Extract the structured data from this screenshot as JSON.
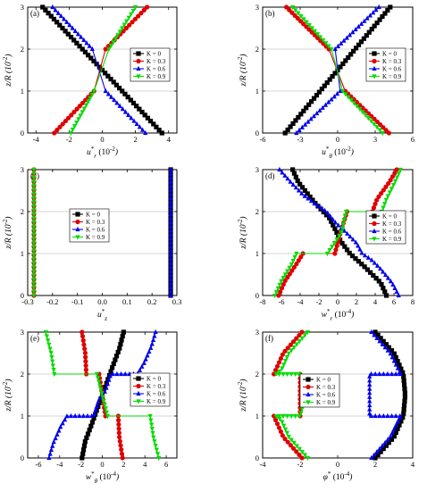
{
  "figure": {
    "legend_entries": [
      "K = 0",
      "K = 0.3",
      "K = 0.6",
      "K = 0.9"
    ],
    "colors": [
      "#000000",
      "#e00000",
      "#0000ee",
      "#00dd00"
    ],
    "markers": [
      "square",
      "circle",
      "triangle-up",
      "triangle-down"
    ]
  },
  "chart_data": [
    {
      "type": "line",
      "panel_label": "(a)",
      "xlabel": "u*_r (10^-2)",
      "ylabel": "z/R (10^-2)",
      "xlim": [
        -4.5,
        4.5
      ],
      "ylim": [
        0,
        3
      ],
      "xticks": [
        "-4",
        "-2",
        "0",
        "2",
        "4"
      ],
      "yticks": [
        "0",
        "1",
        "2",
        "3"
      ],
      "grid_y": [
        1,
        2
      ],
      "legend_placement": "right-middle",
      "series": [
        {
          "name": "K = 0",
          "x": [
            3.6,
            -3.6
          ],
          "y": [
            0,
            3
          ]
        },
        {
          "name": "K = 0.3",
          "x": [
            -2.9,
            -0.5,
            null,
            0.2,
            2.7
          ],
          "y": [
            0,
            1,
            null,
            2,
            3
          ]
        },
        {
          "name": "K = 0.6",
          "x": [
            2.6,
            0.2,
            null,
            -0.6,
            -3.0
          ],
          "y": [
            0,
            1,
            null,
            2,
            3
          ]
        },
        {
          "name": "K = 0.9",
          "x": [
            -1.9,
            -0.5,
            null,
            0.4,
            2.0
          ],
          "y": [
            0,
            1,
            null,
            2,
            3
          ]
        }
      ]
    },
    {
      "type": "line",
      "panel_label": "(b)",
      "xlabel": "u*_θ (10^-2)",
      "ylabel": "z/R (10^-2)",
      "xlim": [
        -6,
        6
      ],
      "ylim": [
        0,
        3
      ],
      "xticks": [
        "-6",
        "-3",
        "0",
        "3",
        "6"
      ],
      "yticks": [
        "0",
        "1",
        "2",
        "3"
      ],
      "grid_y": [
        1,
        2
      ],
      "legend_placement": "right-middle",
      "series": [
        {
          "name": "K = 0",
          "x": [
            -4.2,
            4.2
          ],
          "y": [
            0,
            3
          ]
        },
        {
          "name": "K = 0.3",
          "x": [
            4.1,
            0.6,
            null,
            -0.7,
            -4.1
          ],
          "y": [
            0,
            1,
            null,
            2,
            3
          ]
        },
        {
          "name": "K = 0.6",
          "x": [
            -3.3,
            0.2,
            null,
            -0.2,
            3.3
          ],
          "y": [
            0,
            1,
            null,
            2,
            3
          ]
        },
        {
          "name": "K = 0.9",
          "x": [
            3.6,
            0.4,
            null,
            -0.5,
            -3.6
          ],
          "y": [
            0,
            1,
            null,
            2,
            3
          ]
        }
      ]
    },
    {
      "type": "line",
      "panel_label": "(c)",
      "xlabel": "u*_z",
      "ylabel": "z/R (10^-2)",
      "xlim": [
        -0.3,
        0.3
      ],
      "ylim": [
        0,
        3
      ],
      "xticks": [
        "-0.3",
        "-0.2",
        "-0.1",
        "0.0",
        "0.1",
        "0.2",
        "0.3"
      ],
      "yticks": [
        "0",
        "1",
        "2",
        "3"
      ],
      "grid_y": [
        1,
        2
      ],
      "legend_placement": "center",
      "series": [
        {
          "name": "K = 0",
          "x": [
            0.275,
            0.275
          ],
          "y": [
            0,
            3
          ]
        },
        {
          "name": "K = 0.3",
          "x": [
            -0.275,
            -0.275
          ],
          "y": [
            0,
            3
          ]
        },
        {
          "name": "K = 0.6",
          "x": [
            0.275,
            0.275
          ],
          "y": [
            0,
            3
          ]
        },
        {
          "name": "K = 0.9",
          "x": [
            -0.275,
            -0.275
          ],
          "y": [
            0,
            3
          ]
        }
      ]
    },
    {
      "type": "line",
      "panel_label": "(d)",
      "xlabel": "w*_r (10^-4)",
      "ylabel": "z/R (10^-2)",
      "xlim": [
        -8,
        8
      ],
      "ylim": [
        0,
        3
      ],
      "xticks": [
        "-8",
        "-6",
        "-4",
        "-2",
        "0",
        "2",
        "4",
        "6",
        "8"
      ],
      "yticks": [
        "0",
        "1",
        "2",
        "3"
      ],
      "grid_y": [
        1,
        2
      ],
      "legend_placement": "right-middle",
      "series": [
        {
          "name": "K = 0",
          "x": [
            5.2,
            4.6,
            2.8,
            1.3,
            0.3,
            -0.2,
            -0.9,
            -2.4,
            -4.2,
            -4.8
          ],
          "y": [
            0,
            0.3,
            0.7,
            1.0,
            1.3,
            1.55,
            1.85,
            2.2,
            2.7,
            3
          ]
        },
        {
          "name": "K = 0.3",
          "x": [
            -6.3,
            -5.6,
            -4.4,
            -3.7,
            null,
            -0.3,
            0.3,
            1.0,
            null,
            3.7,
            4.2,
            5.5,
            6.3
          ],
          "y": [
            0,
            0.35,
            0.75,
            1.0,
            null,
            1.0,
            1.5,
            2.0,
            null,
            2.0,
            2.3,
            2.7,
            3
          ]
        },
        {
          "name": "K = 0.6",
          "x": [
            6.5,
            5.8,
            4.5,
            3.6,
            2.6,
            2.0,
            0.9,
            -0.3,
            -1.2,
            -2.2,
            -3.7,
            -5.0,
            -6.2
          ],
          "y": [
            0,
            0.3,
            0.65,
            0.85,
            1.0,
            1.25,
            1.5,
            1.75,
            2.0,
            2.15,
            2.4,
            2.7,
            3
          ]
        },
        {
          "name": "K = 0.9",
          "x": [
            -6.7,
            -6.0,
            -4.9,
            -4.4,
            null,
            -1.1,
            0.4,
            0.9,
            null,
            4.7,
            5.2,
            6.1,
            6.7
          ],
          "y": [
            0,
            0.35,
            0.75,
            1.0,
            null,
            1.0,
            1.5,
            2.0,
            null,
            2.0,
            2.3,
            2.7,
            3
          ]
        }
      ]
    },
    {
      "type": "line",
      "panel_label": "(e)",
      "xlabel": "w*_θ (10^-4)",
      "ylabel": "z/R (10^-2)",
      "xlim": [
        -7,
        7
      ],
      "ylim": [
        0,
        3
      ],
      "xticks": [
        "-6",
        "-4",
        "-2",
        "0",
        "2",
        "4",
        "6"
      ],
      "yticks": [
        "0",
        "1",
        "2",
        "3"
      ],
      "grid_y": [
        1,
        2
      ],
      "legend_placement": "right-middle",
      "series": [
        {
          "name": "K = 0",
          "x": [
            -1.9,
            -1.6,
            -1.0,
            -0.5,
            0.0,
            0.5,
            1.0,
            1.6,
            2.0
          ],
          "y": [
            0,
            0.4,
            0.8,
            1.15,
            1.5,
            1.85,
            2.2,
            2.6,
            3
          ]
        },
        {
          "name": "K = 0.3",
          "x": [
            1.9,
            1.6,
            1.5,
            null,
            0.3,
            -0.3,
            null,
            -1.5,
            -1.6,
            -1.9
          ],
          "y": [
            0,
            0.5,
            1.0,
            null,
            1.0,
            2.0,
            null,
            2.0,
            2.5,
            3
          ]
        },
        {
          "name": "K = 0.6",
          "x": [
            -5.0,
            -4.6,
            -3.9,
            -3.3,
            -0.8,
            -0.3,
            0.3,
            0.8,
            3.3,
            3.9,
            4.6,
            5.0
          ],
          "y": [
            0,
            0.35,
            0.75,
            1.0,
            1.0,
            1.4,
            1.6,
            2.0,
            2.0,
            2.25,
            2.65,
            3
          ]
        },
        {
          "name": "K = 0.9",
          "x": [
            5.3,
            4.8,
            4.5,
            null,
            0.5,
            -0.5,
            null,
            -4.5,
            -4.8,
            -5.3
          ],
          "y": [
            0,
            0.5,
            1.0,
            null,
            1.0,
            2.0,
            null,
            2.0,
            2.5,
            3
          ]
        }
      ]
    },
    {
      "type": "line",
      "panel_label": "(f)",
      "xlabel": "φ* (10^-4)",
      "ylabel": "z/R (10^-2)",
      "xlim": [
        -4,
        4
      ],
      "ylim": [
        0,
        3
      ],
      "xticks": [
        "-4",
        "-2",
        "0",
        "2",
        "4"
      ],
      "yticks": [
        "0",
        "1",
        "2",
        "3"
      ],
      "grid_y": [
        1,
        2
      ],
      "legend_placement": "left-middle",
      "series": [
        {
          "name": "K = 0",
          "x": [
            2.0,
            3.0,
            3.5,
            3.6,
            3.5,
            3.0,
            2.0
          ],
          "y": [
            0,
            0.5,
            1.0,
            1.5,
            2.0,
            2.5,
            3
          ]
        },
        {
          "name": "K = 0.3",
          "x": [
            -1.9,
            -2.9,
            -3.4,
            null,
            -2.0,
            -2.0,
            null,
            -3.4,
            -2.9,
            -1.9
          ],
          "y": [
            0,
            0.5,
            1.0,
            null,
            1.0,
            2.0,
            null,
            2.0,
            2.5,
            3
          ]
        },
        {
          "name": "K = 0.6",
          "x": [
            1.8,
            2.8,
            3.3,
            3.4,
            1.7,
            1.7,
            3.4,
            3.3,
            2.8,
            1.8
          ],
          "y": [
            0,
            0.5,
            0.95,
            1.0,
            1.0,
            2.0,
            2.0,
            2.05,
            2.5,
            3
          ]
        },
        {
          "name": "K = 0.9",
          "x": [
            -1.6,
            -2.6,
            -3.0,
            -3.3,
            -2.0,
            -1.7,
            -2.0,
            -3.3,
            -3.0,
            -2.6,
            -1.6
          ],
          "y": [
            0,
            0.5,
            0.9,
            1.0,
            1.0,
            1.5,
            2.0,
            2.0,
            2.1,
            2.5,
            3
          ]
        }
      ]
    }
  ]
}
